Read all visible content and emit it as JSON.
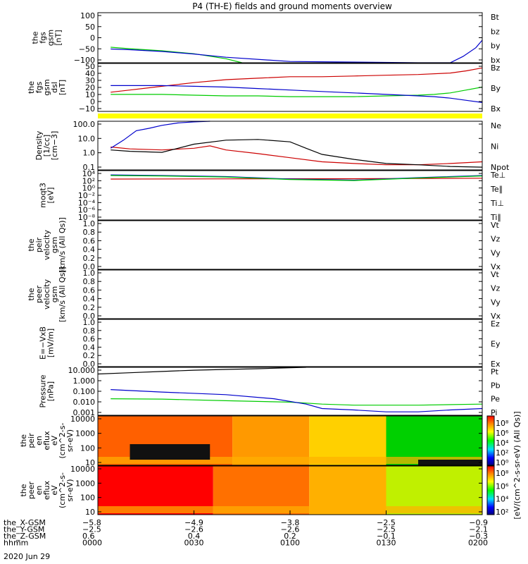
{
  "title": "P4 (TH-E) fields and ground moments overview",
  "colors": {
    "black": "#000000",
    "red": "#cc0000",
    "green": "#00cc00",
    "blue": "#0000cc",
    "yellow": "#ffff00"
  },
  "chart_data": [
    {
      "name": "fgs-gsm",
      "type": "line",
      "ylabel": [
        "the",
        "fgs",
        "gsm",
        "[nT]"
      ],
      "yticks": [
        "100",
        "50",
        "0",
        "−50",
        "−100"
      ],
      "ylim": [
        -100,
        100
      ],
      "legend": [
        {
          "label": "Bt",
          "color": "#000000"
        },
        {
          "label": "bz",
          "color": "#cc0000"
        },
        {
          "label": "by",
          "color": "#00cc00"
        },
        {
          "label": "bx",
          "color": "#0000cc"
        }
      ],
      "series": [
        {
          "name": "by",
          "color": "#00cc00",
          "x": [
            4,
            10,
            20,
            30,
            40,
            45
          ],
          "y": [
            -38,
            -44,
            -52,
            -64,
            -84,
            -100
          ]
        },
        {
          "name": "bx",
          "color": "#0000cc",
          "x": [
            4,
            10,
            20,
            30,
            40,
            60,
            100,
            110,
            114,
            118,
            120
          ],
          "y": [
            -45,
            -48,
            -55,
            -65,
            -78,
            -95,
            -100,
            -100,
            -75,
            -40,
            -10
          ]
        }
      ]
    },
    {
      "name": "fgs-dsl",
      "type": "line",
      "ylabel": [
        "the",
        "fgs",
        "gsm",
        "dsl",
        "[nT]"
      ],
      "yticks": [
        "50",
        "40",
        "30",
        "20",
        "10",
        "0",
        "−10"
      ],
      "ylim": [
        -15,
        50
      ],
      "legend": [
        {
          "label": "Bz",
          "color": "#cc0000"
        },
        {
          "label": "By",
          "color": "#00cc00"
        },
        {
          "label": "Bx",
          "color": "#0000cc"
        }
      ],
      "series": [
        {
          "name": "Bz",
          "color": "#cc0000",
          "x": [
            4,
            10,
            20,
            30,
            40,
            50,
            60,
            70,
            80,
            90,
            100,
            110,
            115,
            120
          ],
          "y": [
            11,
            14,
            19,
            24,
            28,
            30,
            32,
            32,
            33,
            34,
            35,
            37,
            40,
            44
          ]
        },
        {
          "name": "By",
          "color": "#00cc00",
          "x": [
            4,
            10,
            20,
            30,
            40,
            50,
            60,
            70,
            80,
            90,
            100,
            105,
            110,
            115,
            120
          ],
          "y": [
            8,
            8,
            8,
            7,
            6,
            6,
            5,
            5,
            5,
            6,
            7,
            8,
            10,
            14,
            18
          ]
        },
        {
          "name": "Bx",
          "color": "#0000cc",
          "x": [
            4,
            10,
            20,
            30,
            40,
            50,
            60,
            70,
            80,
            90,
            100,
            105,
            110,
            115,
            120
          ],
          "y": [
            20,
            20,
            20,
            19,
            18,
            16,
            14,
            12,
            10,
            8,
            6,
            5,
            3,
            0,
            -3
          ]
        }
      ]
    },
    {
      "name": "density",
      "type": "line",
      "ylog": true,
      "ylabel": [
        "Density",
        "[1/cc]",
        "[cm−3]"
      ],
      "yticks": [
        "100.0",
        "10.0",
        "1.0",
        "0.1"
      ],
      "ylim": [
        0.05,
        200
      ],
      "legend": [
        {
          "label": "Ne",
          "color": "#cc0000"
        },
        {
          "label": "Ni",
          "color": "#000000"
        },
        {
          "label": "Npot",
          "color": "#0000cc"
        }
      ],
      "series": [
        {
          "name": "Ne",
          "color": "#cc0000",
          "x": [
            4,
            10,
            20,
            30,
            35,
            40,
            50,
            60,
            70,
            80,
            90,
            100,
            110,
            120
          ],
          "y": [
            2.5,
            1.8,
            1.5,
            2.0,
            3.0,
            1.5,
            0.8,
            0.4,
            0.2,
            0.15,
            0.12,
            0.12,
            0.15,
            0.2
          ]
        },
        {
          "name": "Ni",
          "color": "#000000",
          "x": [
            4,
            10,
            20,
            25,
            30,
            40,
            50,
            60,
            65,
            70,
            80,
            90,
            100,
            110,
            120
          ],
          "y": [
            1.5,
            1.2,
            1.0,
            2,
            4,
            8,
            9,
            6,
            2,
            0.7,
            0.3,
            0.15,
            0.12,
            0.09,
            0.08
          ]
        },
        {
          "name": "Npot",
          "color": "#0000cc",
          "x": [
            4,
            8,
            12,
            16,
            20,
            25,
            30,
            35
          ],
          "y": [
            2,
            8,
            40,
            60,
            100,
            150,
            180,
            200
          ]
        }
      ]
    },
    {
      "name": "moqt3",
      "type": "line",
      "ylog": true,
      "ylabel": [
        "moqt3",
        "[eV]"
      ],
      "yticks": [
        "10⁴",
        "10²",
        "10⁰",
        "10⁻²",
        "10⁻⁴",
        "10⁻⁶",
        "10⁻⁸"
      ],
      "ylim": [
        1e-09,
        100000.0
      ],
      "legend": [
        {
          "label": "Te⊥",
          "color": "#cc0000"
        },
        {
          "label": "Te∥",
          "color": "#000000"
        },
        {
          "label": "Ti⊥",
          "color": "#0000cc"
        },
        {
          "label": "Ti∥",
          "color": "#00cc00"
        }
      ],
      "series": [
        {
          "name": "Te⊥",
          "color": "#cc0000",
          "x": [
            4,
            40,
            80,
            120
          ],
          "y": [
            400,
            450,
            500,
            700
          ]
        },
        {
          "name": "Ti⊥",
          "color": "#0000cc",
          "x": [
            4,
            20,
            40,
            60,
            80,
            100,
            120
          ],
          "y": [
            6000,
            4000,
            2000,
            400,
            200,
            1000,
            4000
          ]
        },
        {
          "name": "Ti∥",
          "color": "#00cc00",
          "x": [
            4,
            20,
            40,
            60,
            80,
            100,
            120
          ],
          "y": [
            4000,
            3000,
            1500,
            300,
            150,
            800,
            3000
          ]
        }
      ]
    },
    {
      "name": "peir-velocity",
      "type": "line",
      "ylabel": [
        "the",
        "peir",
        "velocity",
        "gsm",
        "[km/s (All Qs)]"
      ],
      "yticks": [
        "1.0",
        "0.8",
        "0.6",
        "0.4",
        "0.2",
        "0.0"
      ],
      "ylim": [
        0,
        1
      ],
      "legend": [
        {
          "label": "Vt",
          "color": "#000000"
        },
        {
          "label": "Vz",
          "color": "#cc0000"
        },
        {
          "label": "Vy",
          "color": "#00cc00"
        },
        {
          "label": "Vx",
          "color": "#0000cc"
        }
      ],
      "series": []
    },
    {
      "name": "peer-velocity",
      "type": "line",
      "ylabel": [
        "the",
        "peer",
        "velocity",
        "gsm",
        "[km/s (All Qs)]"
      ],
      "yticks": [
        "1.0",
        "0.8",
        "0.6",
        "0.4",
        "0.2",
        "0.0"
      ],
      "ylim": [
        0,
        1
      ],
      "legend": [
        {
          "label": "Vt",
          "color": "#000000"
        },
        {
          "label": "Vz",
          "color": "#cc0000"
        },
        {
          "label": "Vy",
          "color": "#00cc00"
        },
        {
          "label": "Vx",
          "color": "#0000cc"
        }
      ],
      "series": []
    },
    {
      "name": "e-field",
      "type": "line",
      "ylabel": [
        "E=−VxB",
        "[mV/m]"
      ],
      "yticks": [
        "1.0",
        "0.8",
        "0.6",
        "0.4",
        "0.2",
        "0.0"
      ],
      "ylim": [
        0,
        1
      ],
      "legend": [
        {
          "label": "Ez",
          "color": "#cc0000"
        },
        {
          "label": "Ey",
          "color": "#00cc00"
        },
        {
          "label": "Ex",
          "color": "#0000cc"
        }
      ],
      "series": []
    },
    {
      "name": "pressure",
      "type": "line",
      "ylog": true,
      "ylabel": [
        "Pressure",
        "[nPa]"
      ],
      "yticks": [
        "10.000",
        "1.000",
        "0.100",
        "0.010",
        "0.001"
      ],
      "ylim": [
        0.001,
        20
      ],
      "legend": [
        {
          "label": "Pt",
          "color": "#000000"
        },
        {
          "label": "Pb",
          "color": "#cc0000"
        },
        {
          "label": "Pe",
          "color": "#00cc00"
        },
        {
          "label": "Pi",
          "color": "#0000cc"
        }
      ],
      "series": [
        {
          "name": "Pt",
          "color": "#000000",
          "x": [
            0,
            10,
            20,
            30,
            40,
            50,
            60,
            65
          ],
          "y": [
            5,
            6.5,
            8.5,
            11,
            13,
            15,
            18,
            20
          ]
        },
        {
          "name": "Pe",
          "color": "#00cc00",
          "x": [
            4,
            20,
            40,
            60,
            70,
            80,
            100,
            120
          ],
          "y": [
            0.03,
            0.028,
            0.02,
            0.015,
            0.01,
            0.008,
            0.008,
            0.01
          ]
        },
        {
          "name": "Pi",
          "color": "#0000cc",
          "x": [
            4,
            20,
            40,
            55,
            65,
            70,
            80,
            90,
            100,
            110,
            120
          ],
          "y": [
            0.2,
            0.12,
            0.07,
            0.03,
            0.01,
            0.004,
            0.003,
            0.002,
            0.002,
            0.003,
            0.004
          ]
        }
      ]
    },
    {
      "name": "peir-eflux",
      "type": "heatmap",
      "ylog": true,
      "ylabel": [
        "the",
        "peir",
        "en",
        "eflux",
        "eV",
        "(cm^2-s-",
        "sr-eV)"
      ],
      "yticks": [
        "10000",
        "1000",
        "100",
        "10"
      ],
      "ylim": [
        6,
        25000
      ]
    },
    {
      "name": "peer-eflux",
      "type": "heatmap",
      "ylog": true,
      "ylabel": [
        "the",
        "peer",
        "en",
        "eflux",
        "eV",
        "(cm^2-s-",
        "sr-eV)"
      ],
      "yticks": [
        "10000",
        "1000",
        "100",
        "10"
      ],
      "ylim": [
        6,
        25000
      ]
    }
  ],
  "colorbars": [
    {
      "ticks": [
        "10⁸",
        "10⁶",
        "10⁴",
        "10²",
        "10⁰"
      ]
    },
    {
      "ticks": [
        "10⁸",
        "10⁶",
        "10⁴",
        "10²"
      ]
    }
  ],
  "colorbar_label": "[eV/(cm^2-s-sr-eV) (All Qs)]",
  "xaxis": {
    "rows": [
      {
        "label": "the_X-GSM",
        "values": [
          "−5.8",
          "−4.9",
          "−3.8",
          "−2.5",
          "−0.9"
        ]
      },
      {
        "label": "the_Y-GSM",
        "values": [
          "−2.5",
          "−2.6",
          "−2.6",
          "−2.5",
          "−2.1"
        ]
      },
      {
        "label": "the_Z-GSM",
        "values": [
          "0.6",
          "0.4",
          "0.2",
          "−0.1",
          "−0.3"
        ]
      },
      {
        "label": "hhmm",
        "values": [
          "0000",
          "0030",
          "0100",
          "0130",
          "0200"
        ]
      }
    ],
    "date": "2020 Jun 29"
  }
}
